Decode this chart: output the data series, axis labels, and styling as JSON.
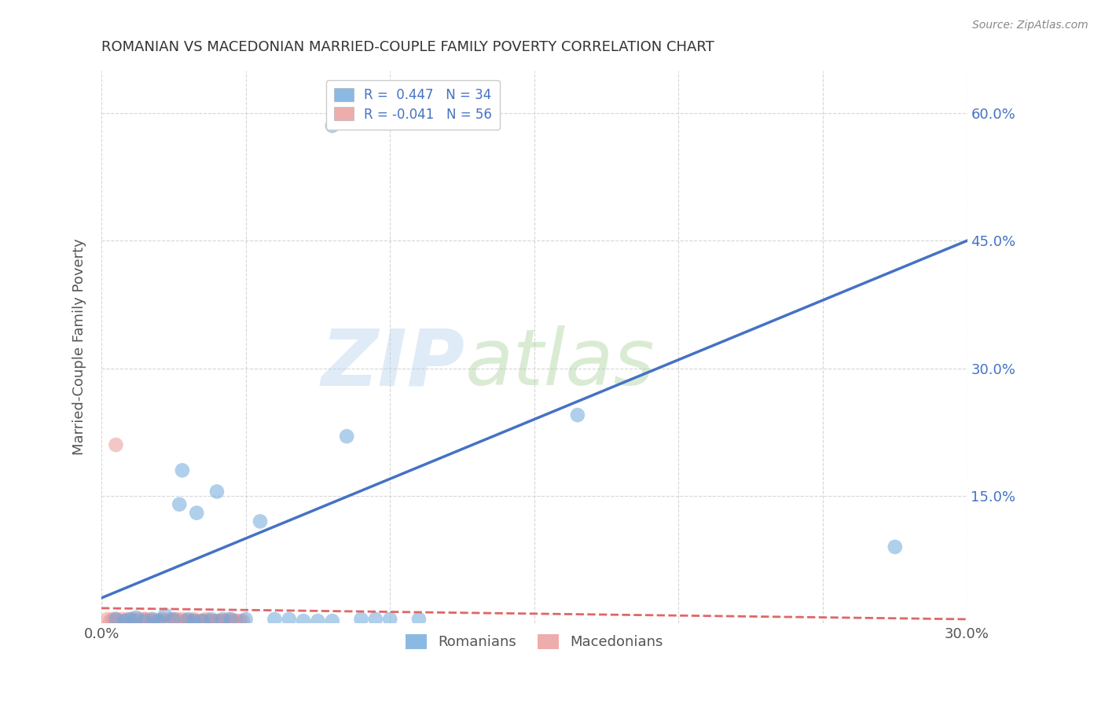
{
  "title": "ROMANIAN VS MACEDONIAN MARRIED-COUPLE FAMILY POVERTY CORRELATION CHART",
  "source": "Source: ZipAtlas.com",
  "ylabel_label": "Married-Couple Family Poverty",
  "xlim": [
    0.0,
    0.3
  ],
  "ylim": [
    0.0,
    0.65
  ],
  "legend_romanian": "R =  0.447   N = 34",
  "legend_macedonian": "R = -0.041   N = 56",
  "legend_bottom": [
    "Romanians",
    "Macedonians"
  ],
  "romanian_color": "#6fa8dc",
  "macedonian_color": "#ea9999",
  "romanian_line_color": "#4472c4",
  "macedonian_line_color": "#e06666",
  "x_ticks": [
    0.0,
    0.05,
    0.1,
    0.15,
    0.2,
    0.25,
    0.3
  ],
  "x_tick_labels": [
    "0.0%",
    "",
    "",
    "",
    "",
    "",
    "30.0%"
  ],
  "y_ticks": [
    0.0,
    0.15,
    0.3,
    0.45,
    0.6
  ],
  "y_tick_labels": [
    "",
    "15.0%",
    "30.0%",
    "45.0%",
    "60.0%"
  ],
  "romanian_points": [
    [
      0.005,
      0.005
    ],
    [
      0.008,
      0.003
    ],
    [
      0.01,
      0.005
    ],
    [
      0.012,
      0.007
    ],
    [
      0.015,
      0.003
    ],
    [
      0.018,
      0.005
    ],
    [
      0.02,
      0.003
    ],
    [
      0.022,
      0.01
    ],
    [
      0.025,
      0.005
    ],
    [
      0.027,
      0.14
    ],
    [
      0.028,
      0.18
    ],
    [
      0.03,
      0.005
    ],
    [
      0.032,
      0.003
    ],
    [
      0.033,
      0.13
    ],
    [
      0.035,
      0.003
    ],
    [
      0.038,
      0.005
    ],
    [
      0.04,
      0.155
    ],
    [
      0.042,
      0.005
    ],
    [
      0.045,
      0.005
    ],
    [
      0.05,
      0.005
    ],
    [
      0.055,
      0.12
    ],
    [
      0.06,
      0.005
    ],
    [
      0.065,
      0.005
    ],
    [
      0.07,
      0.003
    ],
    [
      0.075,
      0.003
    ],
    [
      0.08,
      0.003
    ],
    [
      0.085,
      0.22
    ],
    [
      0.09,
      0.005
    ],
    [
      0.095,
      0.005
    ],
    [
      0.1,
      0.005
    ],
    [
      0.11,
      0.005
    ],
    [
      0.165,
      0.245
    ],
    [
      0.275,
      0.09
    ],
    [
      0.08,
      0.585
    ]
  ],
  "macedonian_points": [
    [
      0.002,
      0.005
    ],
    [
      0.003,
      0.003
    ],
    [
      0.004,
      0.005
    ],
    [
      0.005,
      0.005
    ],
    [
      0.006,
      0.003
    ],
    [
      0.007,
      0.005
    ],
    [
      0.008,
      0.003
    ],
    [
      0.009,
      0.005
    ],
    [
      0.01,
      0.003
    ],
    [
      0.011,
      0.005
    ],
    [
      0.012,
      0.003
    ],
    [
      0.013,
      0.005
    ],
    [
      0.014,
      0.003
    ],
    [
      0.015,
      0.005
    ],
    [
      0.016,
      0.003
    ],
    [
      0.017,
      0.005
    ],
    [
      0.018,
      0.003
    ],
    [
      0.019,
      0.003
    ],
    [
      0.02,
      0.003
    ],
    [
      0.021,
      0.005
    ],
    [
      0.022,
      0.003
    ],
    [
      0.023,
      0.003
    ],
    [
      0.024,
      0.005
    ],
    [
      0.025,
      0.003
    ],
    [
      0.026,
      0.005
    ],
    [
      0.027,
      0.003
    ],
    [
      0.028,
      0.005
    ],
    [
      0.029,
      0.003
    ],
    [
      0.03,
      0.003
    ],
    [
      0.031,
      0.003
    ],
    [
      0.032,
      0.005
    ],
    [
      0.033,
      0.003
    ],
    [
      0.034,
      0.003
    ],
    [
      0.035,
      0.003
    ],
    [
      0.036,
      0.005
    ],
    [
      0.037,
      0.003
    ],
    [
      0.038,
      0.003
    ],
    [
      0.039,
      0.003
    ],
    [
      0.04,
      0.003
    ],
    [
      0.041,
      0.003
    ],
    [
      0.042,
      0.003
    ],
    [
      0.043,
      0.003
    ],
    [
      0.044,
      0.005
    ],
    [
      0.045,
      0.003
    ],
    [
      0.046,
      0.003
    ],
    [
      0.047,
      0.003
    ],
    [
      0.048,
      0.003
    ],
    [
      0.049,
      0.003
    ],
    [
      0.005,
      0.21
    ],
    [
      0.01,
      0.003
    ],
    [
      0.015,
      0.005
    ],
    [
      0.02,
      0.003
    ],
    [
      0.025,
      0.003
    ],
    [
      0.03,
      0.003
    ],
    [
      0.035,
      0.003
    ],
    [
      0.04,
      0.003
    ]
  ]
}
